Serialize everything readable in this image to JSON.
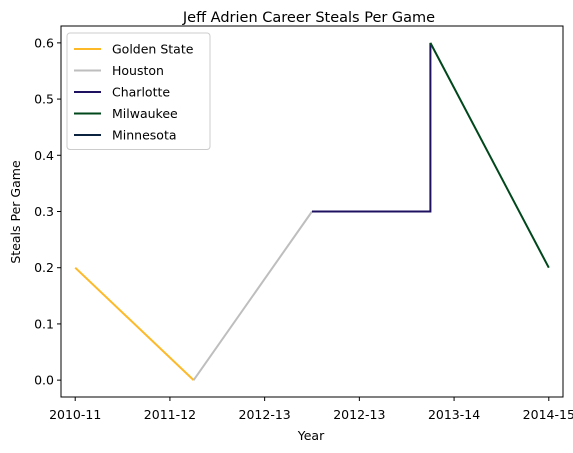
{
  "chart_data": {
    "type": "line",
    "title": "Jeff Adrien Career Steals Per Game",
    "xlabel": "Year",
    "ylabel": "Steals Per Game",
    "xlim": [
      -0.15,
      5.15
    ],
    "ylim": [
      -0.03,
      0.63
    ],
    "x_ticks": [
      {
        "pos": 0,
        "label": "2010-11"
      },
      {
        "pos": 1,
        "label": "2011-12"
      },
      {
        "pos": 2,
        "label": "2012-13"
      },
      {
        "pos": 3,
        "label": "2012-13"
      },
      {
        "pos": 4,
        "label": "2013-14"
      },
      {
        "pos": 5,
        "label": "2014-15"
      }
    ],
    "y_ticks": [
      0.0,
      0.1,
      0.2,
      0.3,
      0.4,
      0.5,
      0.6
    ],
    "y_tick_labels": [
      "0.0",
      "0.1",
      "0.2",
      "0.3",
      "0.4",
      "0.5",
      "0.6"
    ],
    "grid": false,
    "legend_position": "top-left",
    "series": [
      {
        "name": "Golden State",
        "color": "#FDB927",
        "points": [
          {
            "x": "2010-11",
            "y": 0.2
          },
          {
            "x": "2011-12",
            "y": 0.0
          }
        ]
      },
      {
        "name": "Houston",
        "color": "#BEBEBE",
        "points": [
          {
            "x": "2011-12",
            "y": 0.0
          },
          {
            "x": "2012-13",
            "y": 0.3
          }
        ]
      },
      {
        "name": "Charlotte",
        "color": "#1D1160",
        "points": [
          {
            "x": "2012-13",
            "y": 0.3
          },
          {
            "x": "2012-13",
            "y": 0.3
          },
          {
            "x": "2013-14",
            "y": 0.3
          },
          {
            "x": "2013-14",
            "y": 0.6
          }
        ]
      },
      {
        "name": "Milwaukee",
        "color": "#00471B",
        "points": [
          {
            "x": "2013-14",
            "y": 0.6
          },
          {
            "x": "2014-15",
            "y": 0.2
          }
        ]
      },
      {
        "name": "Minnesota",
        "color": "#0C2340",
        "points": []
      }
    ]
  }
}
